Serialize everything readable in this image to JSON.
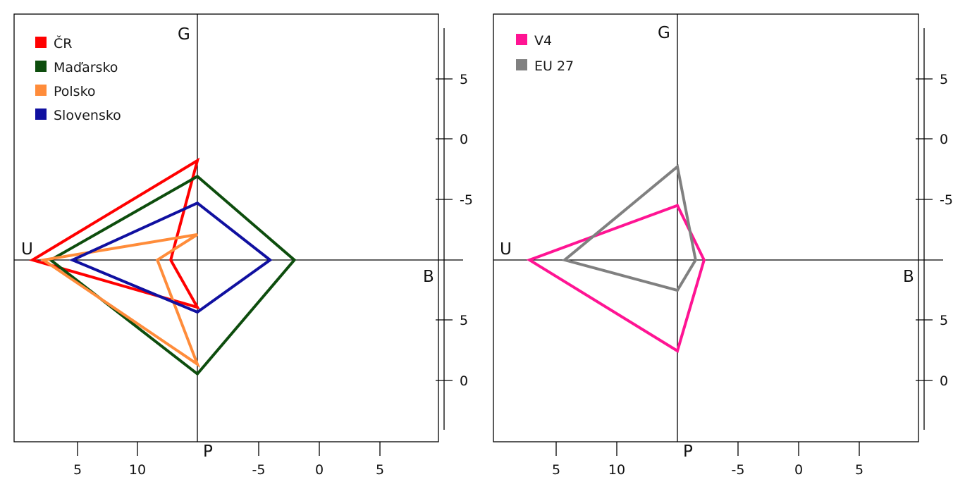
{
  "chart_data": [
    {
      "type": "radar",
      "axes": [
        "G",
        "B",
        "P",
        "U"
      ],
      "bottom_scale_labels": [
        "5",
        "10",
        "-5",
        "0",
        "5"
      ],
      "right_scale_labels": [
        "5",
        "0",
        "-5",
        "5",
        "0"
      ],
      "legend": {
        "placement": "top-left"
      },
      "series": [
        {
          "name": "ČR",
          "color": "#ff0000",
          "values": {
            "G": -8.2,
            "B": 2.2,
            "P": 3.9,
            "U": 13.6
          }
        },
        {
          "name": "Maďarsko",
          "color": "#0d4d0d",
          "values": {
            "G": -6.9,
            "B": -8.0,
            "P": 9.4,
            "U": 12.1
          }
        },
        {
          "name": "Polsko",
          "color": "#ff8c3a",
          "values": {
            "G": -2.1,
            "B": 3.3,
            "P": 8.6,
            "U": 12.7
          }
        },
        {
          "name": "Slovensko",
          "color": "#1010a0",
          "values": {
            "G": -4.7,
            "B": -6.0,
            "P": 4.3,
            "U": 10.3
          }
        }
      ]
    },
    {
      "type": "radar",
      "axes": [
        "G",
        "B",
        "P",
        "U"
      ],
      "bottom_scale_labels": [
        "5",
        "10",
        "-5",
        "0",
        "5"
      ],
      "right_scale_labels": [
        "5",
        "0",
        "-5",
        "5",
        "0"
      ],
      "legend": {
        "placement": "top-left"
      },
      "series": [
        {
          "name": "V4",
          "color": "#ff1493",
          "values": {
            "G": -4.5,
            "B": -2.2,
            "P": 7.5,
            "U": 12.2
          }
        },
        {
          "name": "EU 27",
          "color": "#808080",
          "values": {
            "G": -7.7,
            "B": -1.5,
            "P": 2.5,
            "U": 9.3
          }
        }
      ]
    }
  ]
}
